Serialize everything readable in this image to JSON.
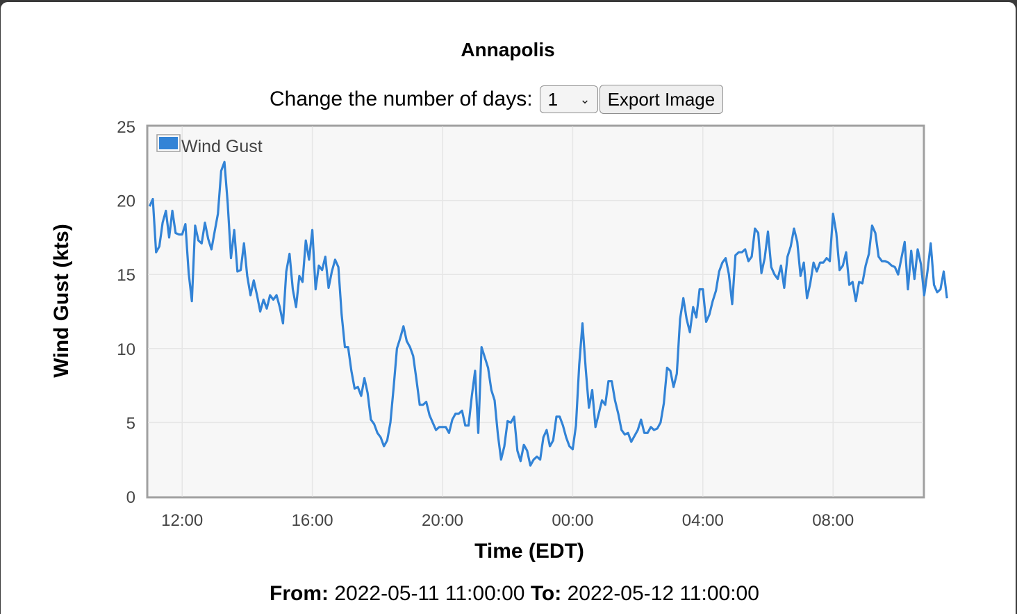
{
  "page": {
    "title": "Annapolis",
    "days_label": "Change the number of days:",
    "days_value": "1",
    "export_label": "Export Image",
    "from_label": "From:",
    "from_value": "2022-05-11 11:00:00",
    "to_label": "To:",
    "to_value": "2022-05-12 11:00:00"
  },
  "chart_data": {
    "type": "line",
    "title": "",
    "xlabel": "Time (EDT)",
    "ylabel": "Wind Gust (kts)",
    "ylim": [
      0,
      25
    ],
    "yticks": [
      0,
      5,
      10,
      15,
      20,
      25
    ],
    "xlim_hours": [
      10.95,
      34.77
    ],
    "xticks": [
      {
        "hour": 12,
        "label": "12:00"
      },
      {
        "hour": 16,
        "label": "16:00"
      },
      {
        "hour": 20,
        "label": "20:00"
      },
      {
        "hour": 24,
        "label": "00:00"
      },
      {
        "hour": 28,
        "label": "04:00"
      },
      {
        "hour": 32,
        "label": "08:00"
      }
    ],
    "grid": true,
    "legend": {
      "position": "top-left",
      "entries": [
        "Wind Gust"
      ]
    },
    "series": [
      {
        "name": "Wind Gust",
        "color": "#3283d6",
        "x_start_hour": 11.0,
        "x_step_hours": 0.1,
        "values": [
          19.6,
          20.1,
          16.5,
          16.9,
          18.5,
          19.3,
          17.5,
          19.3,
          17.8,
          17.7,
          17.7,
          18.4,
          15.1,
          13.2,
          18.3,
          17.3,
          17.1,
          18.5,
          17.4,
          16.7,
          17.9,
          19.1,
          22.0,
          22.6,
          19.8,
          16.1,
          18.0,
          15.2,
          15.3,
          17.1,
          14.9,
          13.6,
          14.6,
          13.6,
          12.5,
          13.3,
          12.7,
          13.6,
          13.3,
          13.6,
          12.8,
          11.7,
          15.2,
          16.4,
          14.0,
          12.8,
          14.9,
          14.5,
          17.3,
          16.0,
          18.0,
          14.0,
          15.6,
          15.3,
          16.2,
          14.1,
          15.2,
          16.0,
          15.5,
          12.3,
          10.1,
          10.1,
          8.5,
          7.3,
          7.4,
          6.8,
          8.0,
          7.0,
          5.2,
          4.9,
          4.3,
          4.0,
          3.4,
          3.8,
          5.0,
          7.4,
          10.0,
          10.7,
          11.5,
          10.5,
          10.1,
          9.5,
          7.9,
          6.2,
          6.2,
          6.4,
          5.5,
          5.0,
          4.5,
          4.7,
          4.7,
          4.7,
          4.3,
          5.2,
          5.6,
          5.6,
          5.8,
          4.8,
          4.8,
          6.8,
          8.5,
          4.3,
          10.1,
          9.4,
          8.7,
          7.2,
          6.5,
          4.2,
          2.5,
          3.4,
          5.1,
          5.0,
          5.4,
          3.1,
          2.4,
          3.5,
          3.1,
          2.1,
          2.5,
          2.7,
          2.5,
          4.0,
          4.5,
          3.4,
          3.8,
          5.4,
          5.4,
          4.8,
          4.0,
          3.4,
          3.2,
          4.8,
          8.9,
          11.7,
          8.6,
          6.0,
          7.2,
          4.7,
          5.6,
          6.5,
          6.2,
          7.8,
          7.8,
          6.5,
          5.6,
          4.5,
          4.2,
          4.3,
          3.7,
          4.1,
          4.5,
          5.2,
          4.3,
          4.3,
          4.7,
          4.5,
          4.6,
          5.0,
          6.3,
          8.7,
          8.5,
          7.4,
          8.3,
          12.0,
          13.4,
          12.0,
          11.1,
          12.8,
          12.1,
          14.0,
          14.0,
          11.8,
          12.3,
          13.2,
          13.9,
          15.2,
          15.8,
          16.1,
          15.0,
          13.0,
          16.3,
          16.5,
          16.5,
          16.7,
          15.9,
          16.2,
          18.1,
          17.8,
          15.1,
          16.1,
          17.9,
          15.5,
          15.0,
          14.7,
          15.6,
          14.1,
          16.2,
          16.9,
          18.1,
          17.2,
          14.9,
          15.8,
          13.4,
          14.4,
          15.8,
          15.2,
          15.8,
          15.8,
          16.1,
          15.9,
          19.1,
          17.8,
          15.3,
          15.6,
          16.5,
          14.3,
          14.5,
          13.2,
          14.5,
          14.4,
          15.6,
          16.4,
          18.3,
          17.8,
          16.2,
          15.9,
          15.9,
          15.8,
          15.6,
          15.5,
          15.0,
          16.1,
          17.2,
          14.0,
          16.6,
          14.7,
          16.7,
          15.7,
          13.6,
          15.2,
          17.1,
          14.3,
          13.8,
          14.0,
          15.2,
          13.4
        ]
      }
    ]
  }
}
